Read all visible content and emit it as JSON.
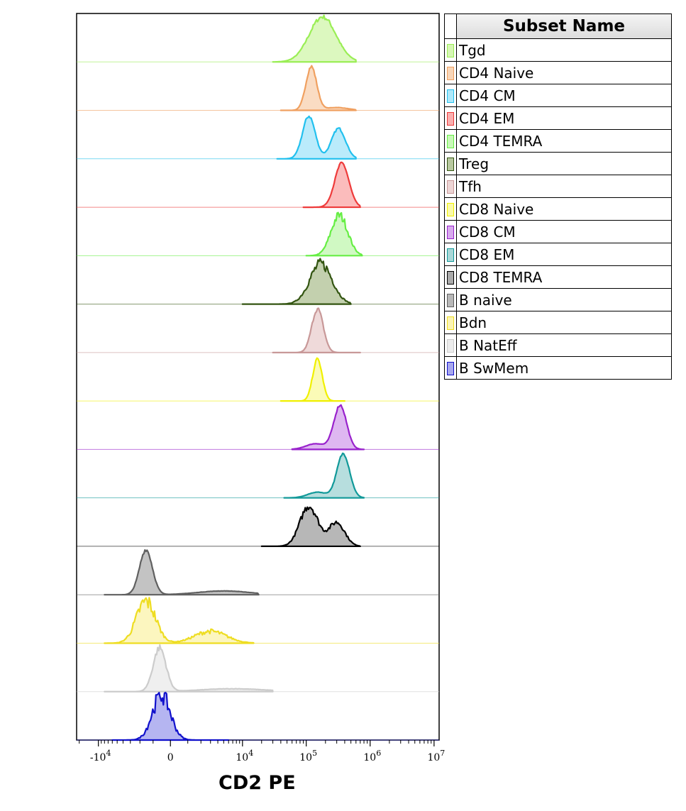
{
  "chart_data": {
    "type": "area",
    "subtype": "staggered histogram overlay",
    "xlabel": "CD2 PE",
    "x_scale": "biexponential",
    "x_ticks": [
      {
        "value": -10000,
        "label": "-10",
        "exp": "4"
      },
      {
        "value": 0,
        "label": "0",
        "exp": ""
      },
      {
        "value": 10000,
        "label": "10",
        "exp": "4"
      },
      {
        "value": 100000,
        "label": "10",
        "exp": "5"
      },
      {
        "value": 1000000,
        "label": "10",
        "exp": "6"
      },
      {
        "value": 10000000,
        "label": "10",
        "exp": "7"
      }
    ],
    "legend_header": "Subset Name",
    "series": [
      {
        "name": "Tgd",
        "color": "#9aee55",
        "fill": "#d6f7b4",
        "peaks": [
          {
            "x": 180000,
            "w": 0.42,
            "h": 0.95
          }
        ],
        "range": [
          30000,
          600000
        ],
        "noise": 0.05
      },
      {
        "name": "CD4 Naive",
        "color": "#f0a060",
        "fill": "#f9d6b8",
        "peaks": [
          {
            "x": 120000,
            "w": 0.17,
            "h": 0.92
          },
          {
            "x": 300000,
            "w": 0.35,
            "h": 0.06
          }
        ],
        "range": [
          40000,
          600000
        ],
        "noise": 0.04
      },
      {
        "name": "CD4 CM",
        "color": "#22c0ee",
        "fill": "#aee8fa",
        "peaks": [
          {
            "x": 110000,
            "w": 0.2,
            "h": 0.9
          },
          {
            "x": 320000,
            "w": 0.22,
            "h": 0.64
          }
        ],
        "range": [
          35000,
          600000
        ],
        "noise": 0.04
      },
      {
        "name": "CD4 EM",
        "color": "#ee3b3b",
        "fill": "#fab0b0",
        "peaks": [
          {
            "x": 360000,
            "w": 0.22,
            "h": 0.93
          }
        ],
        "range": [
          90000,
          700000
        ],
        "noise": 0.03
      },
      {
        "name": "CD4 TEMRA",
        "color": "#66ee44",
        "fill": "#c8f8b8",
        "peaks": [
          {
            "x": 330000,
            "w": 0.26,
            "h": 0.85
          }
        ],
        "range": [
          100000,
          750000
        ],
        "noise": 0.12
      },
      {
        "name": "Treg",
        "color": "#335511",
        "fill": "#b8c8a0",
        "peaks": [
          {
            "x": 170000,
            "w": 0.35,
            "h": 0.85
          }
        ],
        "range": [
          10000,
          500000
        ],
        "noise": 0.14
      },
      {
        "name": "Tfh",
        "color": "#c89898",
        "fill": "#ecd4d4",
        "peaks": [
          {
            "x": 150000,
            "w": 0.18,
            "h": 0.92
          }
        ],
        "range": [
          30000,
          700000
        ],
        "noise": 0.05
      },
      {
        "name": "CD8 Naive",
        "color": "#f0f000",
        "fill": "#fafaaa",
        "peaks": [
          {
            "x": 150000,
            "w": 0.15,
            "h": 0.88
          }
        ],
        "range": [
          40000,
          400000
        ],
        "noise": 0.04
      },
      {
        "name": "CD8 CM",
        "color": "#9922cc",
        "fill": "#d8aaee",
        "peaks": [
          {
            "x": 340000,
            "w": 0.2,
            "h": 0.93
          },
          {
            "x": 140000,
            "w": 0.3,
            "h": 0.12
          }
        ],
        "range": [
          60000,
          800000
        ],
        "noise": 0.03
      },
      {
        "name": "CD8 EM",
        "color": "#119999",
        "fill": "#aad8d8",
        "peaks": [
          {
            "x": 380000,
            "w": 0.2,
            "h": 0.93
          },
          {
            "x": 150000,
            "w": 0.3,
            "h": 0.12
          }
        ],
        "range": [
          45000,
          800000
        ],
        "noise": 0.03
      },
      {
        "name": "CD8 TEMRA",
        "color": "#000000",
        "fill": "#aaaaaa",
        "peaks": [
          {
            "x": 110000,
            "w": 0.28,
            "h": 0.85
          },
          {
            "x": 300000,
            "w": 0.25,
            "h": 0.5
          }
        ],
        "range": [
          20000,
          700000
        ],
        "noise": 0.1
      },
      {
        "name": "B naive",
        "color": "#606060",
        "fill": "#b8b8b8",
        "peaks": [
          {
            "x": -1500,
            "w": 0.2,
            "h": 0.95
          },
          {
            "x": 5000,
            "w": 0.8,
            "h": 0.08
          }
        ],
        "range": [
          -8000,
          18000
        ],
        "noise": 0.04
      },
      {
        "name": "Bdn",
        "color": "#eedd22",
        "fill": "#fbf4b4",
        "peaks": [
          {
            "x": -1500,
            "w": 0.3,
            "h": 0.88
          },
          {
            "x": 3000,
            "w": 0.5,
            "h": 0.25
          }
        ],
        "range": [
          -8000,
          15000
        ],
        "noise": 0.2
      },
      {
        "name": "B NatEff",
        "color": "#cccccc",
        "fill": "#ececec",
        "peaks": [
          {
            "x": -600,
            "w": 0.2,
            "h": 0.92
          },
          {
            "x": 7000,
            "w": 1.0,
            "h": 0.06
          }
        ],
        "range": [
          -8000,
          30000
        ],
        "noise": 0.08
      },
      {
        "name": "B SwMem",
        "color": "#1111cc",
        "fill": "#a8a8ee",
        "peaks": [
          {
            "x": -500,
            "w": 0.28,
            "h": 0.95
          }
        ],
        "range": [
          -6000,
          6000
        ],
        "noise": 0.22
      }
    ]
  }
}
